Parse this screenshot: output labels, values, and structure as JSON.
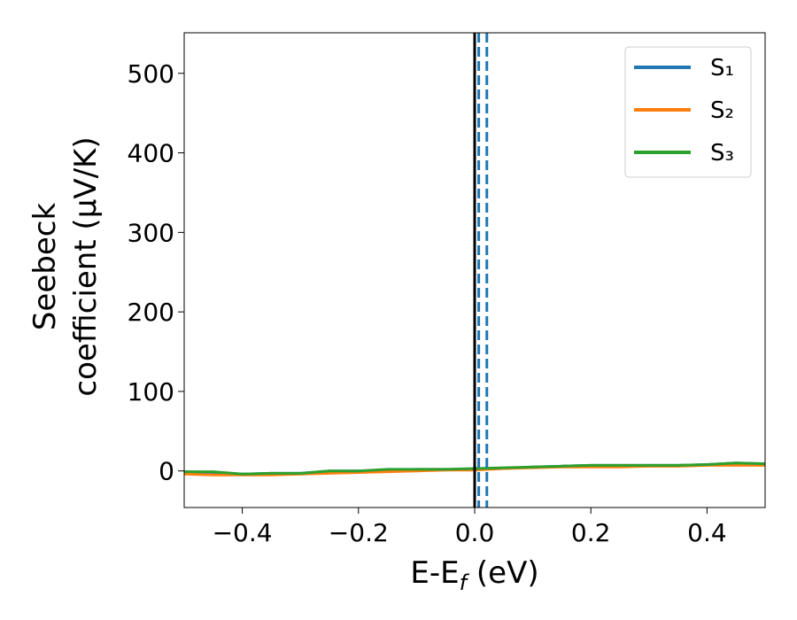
{
  "chart_data": {
    "type": "line",
    "xlabel": [
      "E-E",
      "f",
      " (eV)"
    ],
    "ylabel": [
      "Seebeck",
      "coefficient  (μV/K)"
    ],
    "x": [
      -0.5,
      -0.45,
      -0.4,
      -0.35,
      -0.3,
      -0.25,
      -0.2,
      -0.15,
      -0.1,
      -0.05,
      0,
      0.05,
      0.1,
      0.15,
      0.2,
      0.25,
      0.3,
      0.35,
      0.4,
      0.45,
      0.5
    ],
    "series": [
      {
        "name": "S₁",
        "color": "#1f77b4",
        "values": [
          -1,
          -2,
          -4,
          -3,
          -3,
          0,
          0,
          1,
          2,
          2,
          2,
          3,
          5,
          6,
          7,
          7,
          7,
          7,
          8,
          10,
          9
        ]
      },
      {
        "name": "S₂",
        "color": "#ff7f0e",
        "values": [
          -4,
          -5,
          -5,
          -5,
          -4,
          -3,
          -2,
          -1,
          0,
          1,
          1,
          3,
          4,
          5,
          5,
          5,
          6,
          6,
          7,
          7,
          7
        ]
      },
      {
        "name": "S₃",
        "color": "#2ca02c",
        "values": [
          -1,
          -1,
          -4,
          -3,
          -3,
          0,
          0,
          2,
          2,
          2,
          3,
          4,
          5,
          6,
          7,
          7,
          7,
          7,
          8,
          10,
          9
        ]
      }
    ],
    "vlines": [
      {
        "x": 0,
        "color": "#000000",
        "dashed": false
      },
      {
        "x": 0.007,
        "color": "#1f77b4",
        "dashed": true
      },
      {
        "x": 0.021,
        "color": "#1f77b4",
        "dashed": true
      }
    ],
    "xlim": [
      -0.5,
      0.5
    ],
    "ylim": [
      -46,
      551
    ],
    "xticks": [
      {
        "value": -0.4,
        "label": "−0.4"
      },
      {
        "value": -0.2,
        "label": "−0.2"
      },
      {
        "value": 0,
        "label": "0.0"
      },
      0.2,
      0.4
    ],
    "yticks": [
      0,
      100,
      200,
      300,
      400,
      500
    ],
    "legend": "upper right"
  }
}
